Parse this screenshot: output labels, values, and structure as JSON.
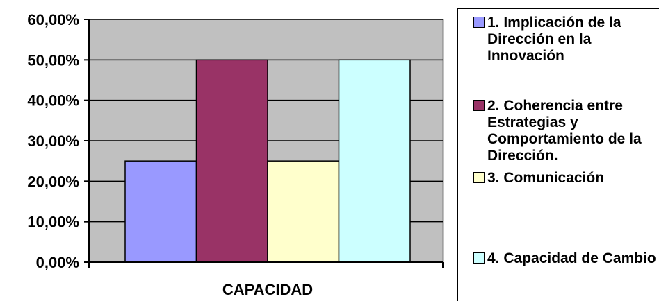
{
  "chart_data": {
    "type": "bar",
    "categories": [
      "CAPACIDAD"
    ],
    "xlabel": "CAPACIDAD",
    "ylabel": "",
    "title": "",
    "ylim": [
      0,
      0.6
    ],
    "yticks": [
      0,
      0.1,
      0.2,
      0.3,
      0.4,
      0.5,
      0.6
    ],
    "ytick_labels": [
      "0,00%",
      "10,00%",
      "20,00%",
      "30,00%",
      "40,00%",
      "50,00%",
      "60,00%"
    ],
    "grid": true,
    "plot_background": "#c0c0c0",
    "legend_position": "right",
    "series": [
      {
        "name": "1. Implicación de la Dirección en la Innovación",
        "values": [
          0.25
        ],
        "color": "#9999ff"
      },
      {
        "name": "2. Coherencia entre Estrategias y Comportamiento de la Dirección.",
        "values": [
          0.5
        ],
        "color": "#993366"
      },
      {
        "name": "3. Comunicación",
        "values": [
          0.25
        ],
        "color": "#ffffcc"
      },
      {
        "name": "4. Capacidad de Cambio",
        "values": [
          0.5
        ],
        "color": "#ccffff"
      }
    ]
  }
}
